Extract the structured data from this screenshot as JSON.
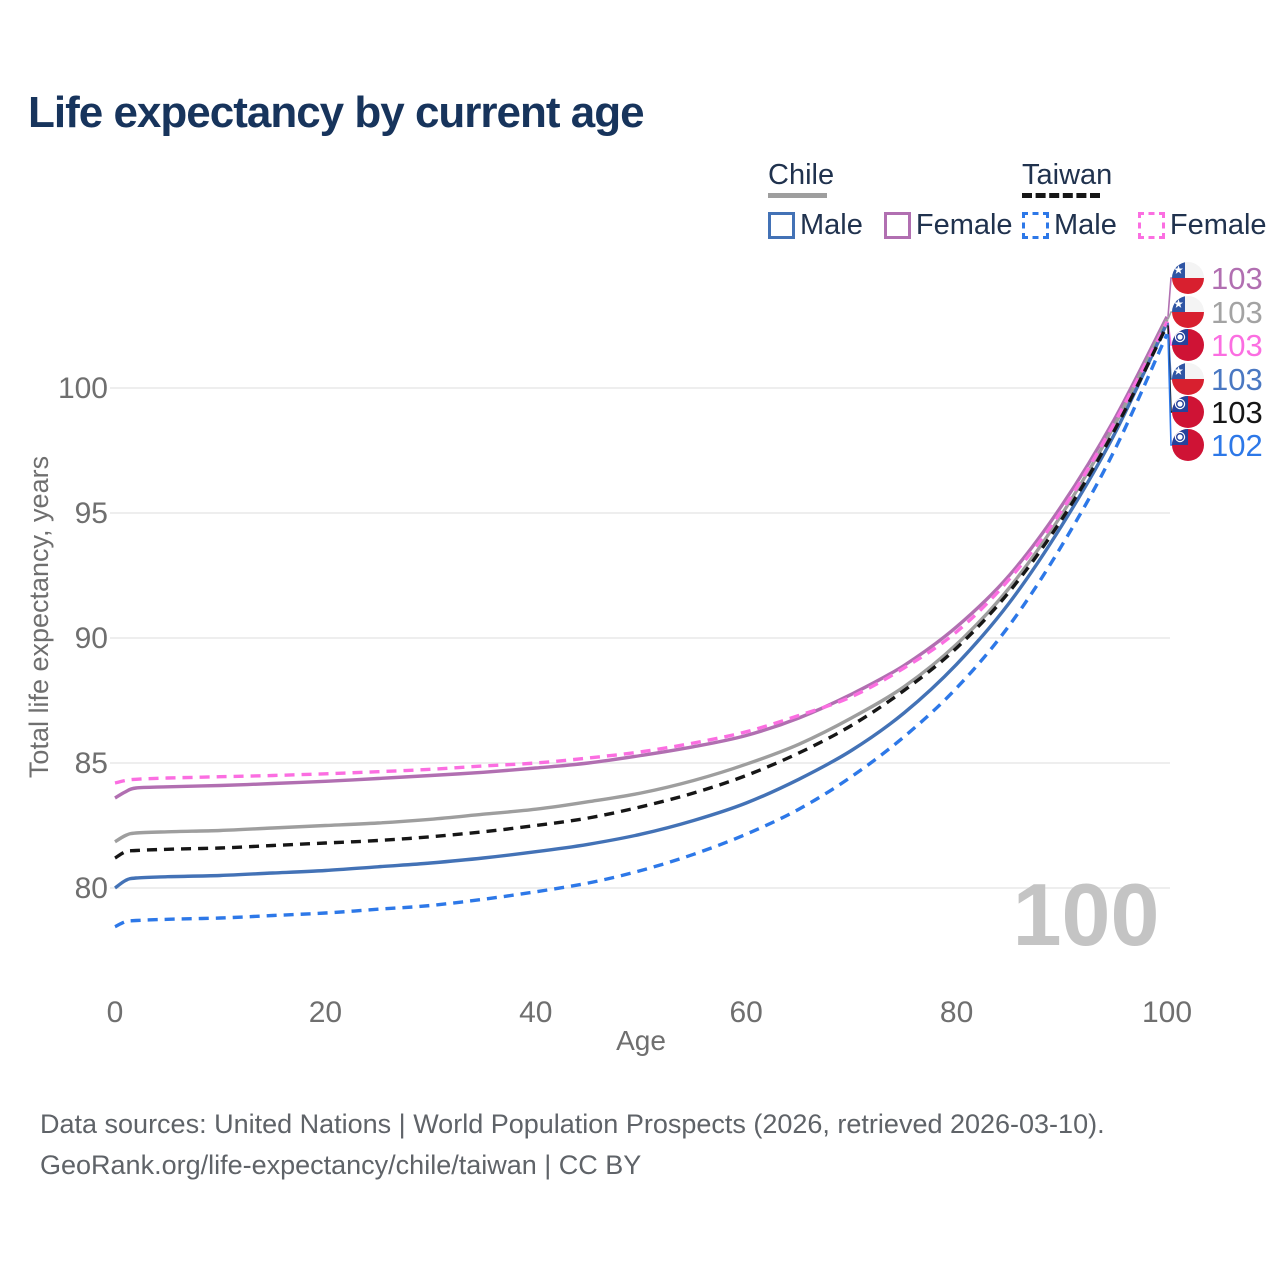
{
  "title": "Life expectancy by current age",
  "legend": {
    "groups": [
      {
        "label": "Chile",
        "line_color": "#9e9e9e",
        "dashed": false,
        "items": [
          {
            "label": "Male",
            "color": "#4372b6",
            "dashed": false
          },
          {
            "label": "Female",
            "color": "#b16fb1",
            "dashed": false
          }
        ]
      },
      {
        "label": "Taiwan",
        "line_color": "#161616",
        "dashed": true,
        "items": [
          {
            "label": "Male",
            "color": "#2d78e8",
            "dashed": true
          },
          {
            "label": "Female",
            "color": "#fb6ee1",
            "dashed": true
          }
        ]
      }
    ]
  },
  "chart_data": {
    "type": "line",
    "title": "Life expectancy by current age",
    "xlabel": "Age",
    "ylabel": "Total life expectancy, years",
    "x_ticks": [
      0,
      20,
      40,
      60,
      80,
      100
    ],
    "y_ticks": [
      80,
      85,
      90,
      95,
      100
    ],
    "xlim": [
      0,
      100
    ],
    "ylim": [
      77,
      104
    ],
    "grid": "horizontal",
    "legend_position": "top-right",
    "watermark": "100",
    "series": [
      {
        "name": "Chile Female",
        "country": "Chile",
        "sex": "Female",
        "color": "#b16fb1",
        "dashed": false,
        "points": [
          [
            0,
            83.6
          ],
          [
            1,
            83.85
          ],
          [
            2,
            84.0
          ],
          [
            5,
            84.05
          ],
          [
            10,
            84.1
          ],
          [
            15,
            84.18
          ],
          [
            20,
            84.27
          ],
          [
            25,
            84.38
          ],
          [
            30,
            84.5
          ],
          [
            35,
            84.63
          ],
          [
            40,
            84.8
          ],
          [
            45,
            85.0
          ],
          [
            50,
            85.3
          ],
          [
            55,
            85.65
          ],
          [
            60,
            86.1
          ],
          [
            65,
            86.8
          ],
          [
            70,
            87.75
          ],
          [
            75,
            88.9
          ],
          [
            80,
            90.45
          ],
          [
            85,
            92.5
          ],
          [
            90,
            95.3
          ],
          [
            95,
            98.75
          ],
          [
            100,
            102.85
          ]
        ]
      },
      {
        "name": "Chile (both sexes)",
        "country": "Chile",
        "sex": "All",
        "color": "#9e9e9e",
        "dashed": false,
        "points": [
          [
            0,
            81.85
          ],
          [
            1,
            82.1
          ],
          [
            2,
            82.2
          ],
          [
            5,
            82.25
          ],
          [
            10,
            82.3
          ],
          [
            15,
            82.4
          ],
          [
            20,
            82.5
          ],
          [
            25,
            82.6
          ],
          [
            30,
            82.75
          ],
          [
            35,
            82.95
          ],
          [
            40,
            83.15
          ],
          [
            45,
            83.45
          ],
          [
            50,
            83.8
          ],
          [
            55,
            84.3
          ],
          [
            60,
            84.95
          ],
          [
            65,
            85.75
          ],
          [
            70,
            86.8
          ],
          [
            75,
            88.05
          ],
          [
            80,
            89.75
          ],
          [
            85,
            92.0
          ],
          [
            90,
            94.95
          ],
          [
            95,
            98.5
          ],
          [
            100,
            102.75
          ]
        ]
      },
      {
        "name": "Taiwan Female",
        "country": "Taiwan",
        "sex": "Female",
        "color": "#fb6ee1",
        "dashed": true,
        "points": [
          [
            0,
            84.2
          ],
          [
            1,
            84.3
          ],
          [
            2,
            84.35
          ],
          [
            5,
            84.4
          ],
          [
            10,
            84.45
          ],
          [
            15,
            84.5
          ],
          [
            20,
            84.57
          ],
          [
            25,
            84.65
          ],
          [
            30,
            84.75
          ],
          [
            35,
            84.88
          ],
          [
            40,
            85.0
          ],
          [
            45,
            85.2
          ],
          [
            50,
            85.45
          ],
          [
            55,
            85.8
          ],
          [
            60,
            86.25
          ],
          [
            65,
            86.9
          ],
          [
            70,
            87.65
          ],
          [
            75,
            88.8
          ],
          [
            80,
            90.25
          ],
          [
            85,
            92.35
          ],
          [
            90,
            95.1
          ],
          [
            95,
            98.6
          ],
          [
            100,
            102.65
          ]
        ]
      },
      {
        "name": "Chile Male",
        "country": "Chile",
        "sex": "Male",
        "color": "#4372b6",
        "dashed": false,
        "points": [
          [
            0,
            80.0
          ],
          [
            1,
            80.3
          ],
          [
            2,
            80.4
          ],
          [
            5,
            80.45
          ],
          [
            10,
            80.5
          ],
          [
            15,
            80.6
          ],
          [
            20,
            80.7
          ],
          [
            25,
            80.85
          ],
          [
            30,
            81.0
          ],
          [
            35,
            81.2
          ],
          [
            40,
            81.45
          ],
          [
            45,
            81.75
          ],
          [
            50,
            82.15
          ],
          [
            55,
            82.7
          ],
          [
            60,
            83.4
          ],
          [
            65,
            84.35
          ],
          [
            70,
            85.5
          ],
          [
            75,
            87.0
          ],
          [
            80,
            88.95
          ],
          [
            85,
            91.4
          ],
          [
            90,
            94.5
          ],
          [
            95,
            98.15
          ],
          [
            100,
            102.6
          ]
        ]
      },
      {
        "name": "Taiwan (both sexes)",
        "country": "Taiwan",
        "sex": "All",
        "color": "#161616",
        "dashed": true,
        "points": [
          [
            0,
            81.2
          ],
          [
            1,
            81.45
          ],
          [
            2,
            81.5
          ],
          [
            5,
            81.55
          ],
          [
            10,
            81.6
          ],
          [
            15,
            81.7
          ],
          [
            20,
            81.8
          ],
          [
            25,
            81.9
          ],
          [
            30,
            82.05
          ],
          [
            35,
            82.25
          ],
          [
            40,
            82.5
          ],
          [
            45,
            82.8
          ],
          [
            50,
            83.25
          ],
          [
            55,
            83.8
          ],
          [
            60,
            84.5
          ],
          [
            65,
            85.4
          ],
          [
            70,
            86.5
          ],
          [
            75,
            87.9
          ],
          [
            80,
            89.6
          ],
          [
            85,
            91.85
          ],
          [
            90,
            94.75
          ],
          [
            95,
            98.3
          ],
          [
            100,
            102.5
          ]
        ]
      },
      {
        "name": "Taiwan Male",
        "country": "Taiwan",
        "sex": "Male",
        "color": "#2d78e8",
        "dashed": true,
        "points": [
          [
            0,
            78.45
          ],
          [
            1,
            78.65
          ],
          [
            2,
            78.7
          ],
          [
            5,
            78.75
          ],
          [
            10,
            78.8
          ],
          [
            15,
            78.9
          ],
          [
            20,
            79.0
          ],
          [
            25,
            79.15
          ],
          [
            30,
            79.3
          ],
          [
            35,
            79.55
          ],
          [
            40,
            79.85
          ],
          [
            45,
            80.2
          ],
          [
            50,
            80.7
          ],
          [
            55,
            81.35
          ],
          [
            60,
            82.15
          ],
          [
            65,
            83.15
          ],
          [
            70,
            84.45
          ],
          [
            75,
            86.05
          ],
          [
            80,
            88.0
          ],
          [
            85,
            90.5
          ],
          [
            90,
            93.7
          ],
          [
            95,
            97.5
          ],
          [
            100,
            102.15
          ]
        ]
      }
    ],
    "end_labels": [
      {
        "value": "103",
        "flag": "chile",
        "color": "#b16fb1",
        "series": "Chile Female"
      },
      {
        "value": "103",
        "flag": "chile",
        "color": "#a3a3a3",
        "series": "Chile (both sexes)"
      },
      {
        "value": "103",
        "flag": "taiwan",
        "color": "#fb6ee1",
        "series": "Taiwan Female"
      },
      {
        "value": "103",
        "flag": "chile",
        "color": "#4a78c2",
        "series": "Chile Male"
      },
      {
        "value": "103",
        "flag": "taiwan",
        "color": "#161616",
        "series": "Taiwan (both sexes)"
      },
      {
        "value": "102",
        "flag": "taiwan",
        "color": "#2d78e8",
        "series": "Taiwan Male"
      }
    ]
  },
  "footer": {
    "line1": "Data sources: United Nations | World Population Prospects (2026, retrieved 2026-03-10).",
    "line2": "GeoRank.org/life-expectancy/chile/taiwan | CC BY"
  }
}
